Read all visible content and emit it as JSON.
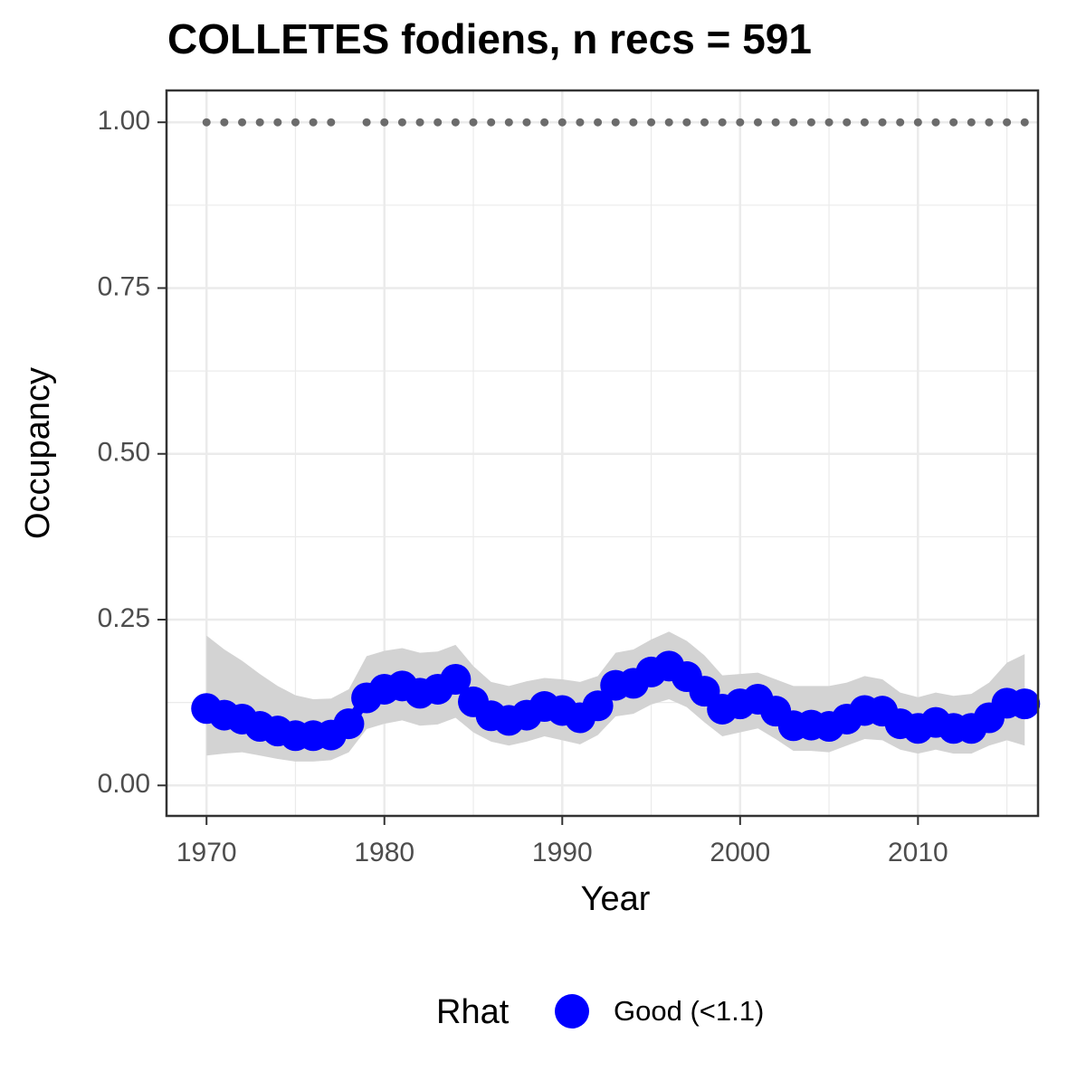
{
  "chart_data": {
    "type": "line",
    "title": "COLLETES fodiens, n recs = 591",
    "x_label": "Year",
    "y_label": "Occupancy",
    "legend_title": "Rhat",
    "legend_position": "bottom",
    "grid": true,
    "x": [
      1970,
      1971,
      1972,
      1973,
      1974,
      1975,
      1976,
      1977,
      1978,
      1979,
      1980,
      1981,
      1982,
      1983,
      1984,
      1985,
      1986,
      1987,
      1988,
      1989,
      1990,
      1991,
      1992,
      1993,
      1994,
      1995,
      1996,
      1997,
      1998,
      1999,
      2000,
      2001,
      2002,
      2003,
      2004,
      2005,
      2006,
      2007,
      2008,
      2009,
      2010,
      2011,
      2012,
      2013,
      2014,
      2015,
      2016
    ],
    "series": [
      {
        "name": "Good (<1.1)",
        "color": "#0000ff",
        "values": [
          0.116,
          0.106,
          0.1,
          0.089,
          0.082,
          0.075,
          0.075,
          0.076,
          0.093,
          0.132,
          0.145,
          0.15,
          0.139,
          0.145,
          0.16,
          0.126,
          0.105,
          0.098,
          0.106,
          0.119,
          0.113,
          0.102,
          0.12,
          0.151,
          0.154,
          0.171,
          0.18,
          0.164,
          0.142,
          0.115,
          0.123,
          0.13,
          0.112,
          0.09,
          0.091,
          0.089,
          0.1,
          0.113,
          0.112,
          0.093,
          0.086,
          0.095,
          0.086,
          0.086,
          0.102,
          0.124,
          0.123
        ],
        "lower": [
          0.045,
          0.048,
          0.05,
          0.045,
          0.04,
          0.036,
          0.036,
          0.038,
          0.05,
          0.085,
          0.093,
          0.098,
          0.09,
          0.092,
          0.102,
          0.08,
          0.066,
          0.06,
          0.066,
          0.074,
          0.068,
          0.062,
          0.076,
          0.104,
          0.108,
          0.122,
          0.13,
          0.118,
          0.095,
          0.074,
          0.08,
          0.086,
          0.07,
          0.052,
          0.052,
          0.05,
          0.06,
          0.07,
          0.068,
          0.054,
          0.048,
          0.054,
          0.048,
          0.048,
          0.06,
          0.068,
          0.06
        ],
        "upper": [
          0.226,
          0.205,
          0.188,
          0.168,
          0.15,
          0.136,
          0.13,
          0.131,
          0.145,
          0.195,
          0.203,
          0.207,
          0.2,
          0.202,
          0.212,
          0.18,
          0.156,
          0.15,
          0.157,
          0.162,
          0.16,
          0.156,
          0.165,
          0.2,
          0.205,
          0.22,
          0.232,
          0.218,
          0.196,
          0.166,
          0.168,
          0.17,
          0.16,
          0.15,
          0.15,
          0.15,
          0.155,
          0.165,
          0.16,
          0.14,
          0.133,
          0.14,
          0.135,
          0.138,
          0.155,
          0.185,
          0.198
        ],
        "band_color": "#d3d3d3"
      },
      {
        "color": "#6b6b6b",
        "values": [
          1,
          1,
          1,
          1,
          1,
          1,
          1,
          1,
          null,
          1,
          1,
          1,
          1,
          1,
          1,
          1,
          1,
          1,
          1,
          1,
          1,
          1,
          1,
          1,
          1,
          1,
          1,
          1,
          1,
          1,
          1,
          1,
          1,
          1,
          1,
          1,
          1,
          1,
          1,
          1,
          1,
          1,
          1,
          1,
          1,
          1,
          1
        ]
      }
    ],
    "xlim": [
      1967.75,
      2016.75
    ],
    "ylim": [
      -0.046,
      1.048
    ],
    "xticks": [
      1970,
      1980,
      1990,
      2000,
      2010
    ],
    "yticks": [
      {
        "value": 0,
        "label": "0.00"
      },
      {
        "value": 0.25,
        "label": "0.25"
      },
      {
        "value": 0.5,
        "label": "0.50"
      },
      {
        "value": 0.75,
        "label": "0.75"
      },
      {
        "value": 1,
        "label": "1.00"
      }
    ],
    "x_minor_ticks": [
      1975,
      1985,
      1995,
      2005,
      2015
    ],
    "y_minor_ticks": [
      0.125,
      0.375,
      0.625,
      0.875
    ]
  }
}
